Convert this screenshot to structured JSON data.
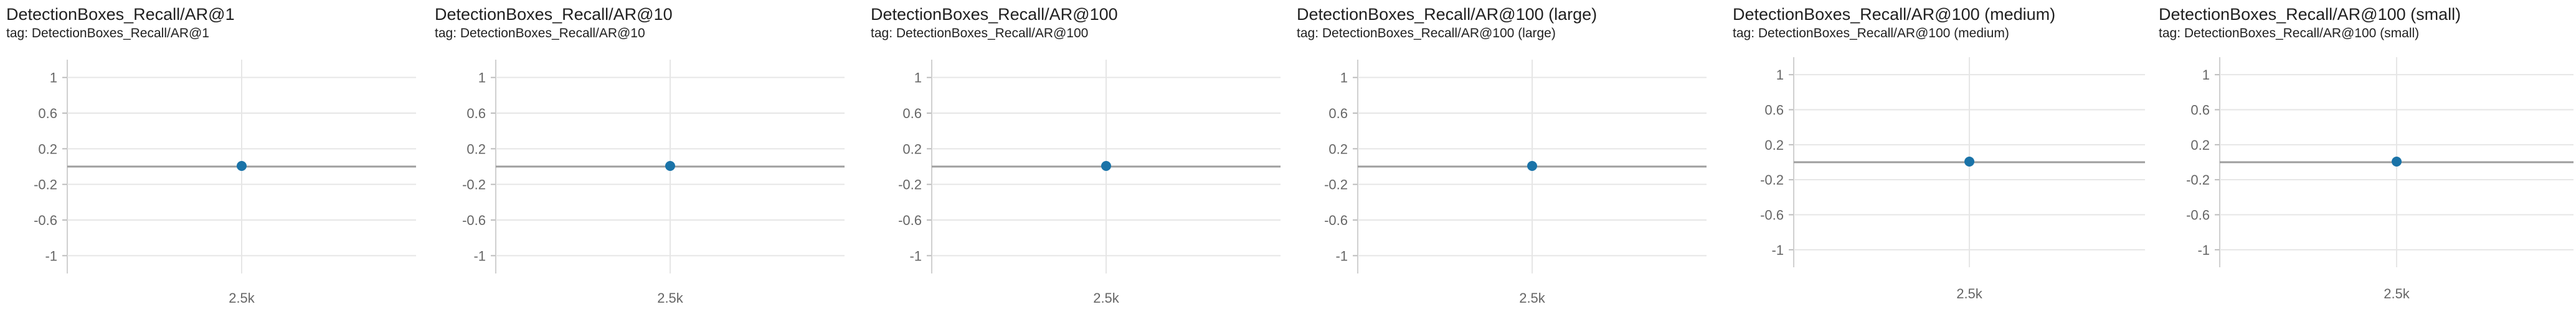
{
  "chart_data": [
    {
      "type": "scatter",
      "title": "DetectionBoxes_Recall/AR@1",
      "tag": "tag: DetectionBoxes_Recall/AR@1",
      "ylim": [
        -1.2,
        1.2
      ],
      "yticks": [
        "1",
        "0.6",
        "0.2",
        "-0.2",
        "-0.6",
        "-1"
      ],
      "ytick_values": [
        1,
        0.6,
        0.2,
        -0.2,
        -0.6,
        -1
      ],
      "xticks": [
        "2.5k"
      ],
      "xtick_values": [
        2500
      ],
      "xlim": [
        0,
        5000
      ],
      "grid": true,
      "series": [
        {
          "x": [
            2500
          ],
          "y": [
            0
          ],
          "color": "#1a73a8"
        }
      ]
    },
    {
      "type": "scatter",
      "title": "DetectionBoxes_Recall/AR@10",
      "tag": "tag: DetectionBoxes_Recall/AR@10",
      "ylim": [
        -1.2,
        1.2
      ],
      "yticks": [
        "1",
        "0.6",
        "0.2",
        "-0.2",
        "-0.6",
        "-1"
      ],
      "ytick_values": [
        1,
        0.6,
        0.2,
        -0.2,
        -0.6,
        -1
      ],
      "xticks": [
        "2.5k"
      ],
      "xtick_values": [
        2500
      ],
      "xlim": [
        0,
        5000
      ],
      "grid": true,
      "series": [
        {
          "x": [
            2500
          ],
          "y": [
            0
          ],
          "color": "#1a73a8"
        }
      ]
    },
    {
      "type": "scatter",
      "title": "DetectionBoxes_Recall/AR@100",
      "tag": "tag: DetectionBoxes_Recall/AR@100",
      "ylim": [
        -1.2,
        1.2
      ],
      "yticks": [
        "1",
        "0.6",
        "0.2",
        "-0.2",
        "-0.6",
        "-1"
      ],
      "ytick_values": [
        1,
        0.6,
        0.2,
        -0.2,
        -0.6,
        -1
      ],
      "xticks": [
        "2.5k"
      ],
      "xtick_values": [
        2500
      ],
      "xlim": [
        0,
        5000
      ],
      "grid": true,
      "series": [
        {
          "x": [
            2500
          ],
          "y": [
            0
          ],
          "color": "#1a73a8"
        }
      ]
    },
    {
      "type": "scatter",
      "title": "DetectionBoxes_Recall/AR@100 (large)",
      "tag": "tag: DetectionBoxes_Recall/AR@100 (large)",
      "ylim": [
        -1.2,
        1.2
      ],
      "yticks": [
        "1",
        "0.6",
        "0.2",
        "-0.2",
        "-0.6",
        "-1"
      ],
      "ytick_values": [
        1,
        0.6,
        0.2,
        -0.2,
        -0.6,
        -1
      ],
      "xticks": [
        "2.5k"
      ],
      "xtick_values": [
        2500
      ],
      "xlim": [
        0,
        5000
      ],
      "grid": true,
      "series": [
        {
          "x": [
            2500
          ],
          "y": [
            0
          ],
          "color": "#1a73a8"
        }
      ]
    },
    {
      "type": "scatter",
      "title": "DetectionBoxes_Recall/AR@100 (medium)",
      "tag": "tag: DetectionBoxes_Recall/AR@100 (medium)",
      "ylim": [
        -1.2,
        1.2
      ],
      "yticks": [
        "1",
        "0.6",
        "0.2",
        "-0.2",
        "-0.6",
        "-1"
      ],
      "ytick_values": [
        1,
        0.6,
        0.2,
        -0.2,
        -0.6,
        -1
      ],
      "xticks": [
        "2.5k"
      ],
      "xtick_values": [
        2500
      ],
      "xlim": [
        0,
        5000
      ],
      "grid": true,
      "series": [
        {
          "x": [
            2500
          ],
          "y": [
            0
          ],
          "color": "#1a73a8"
        }
      ]
    },
    {
      "type": "scatter",
      "title": "DetectionBoxes_Recall/AR@100 (small)",
      "tag": "tag: DetectionBoxes_Recall/AR@100 (small)",
      "ylim": [
        -1.2,
        1.2
      ],
      "yticks": [
        "1",
        "0.6",
        "0.2",
        "-0.2",
        "-0.6",
        "-1"
      ],
      "ytick_values": [
        1,
        0.6,
        0.2,
        -0.2,
        -0.6,
        -1
      ],
      "xticks": [
        "2.5k"
      ],
      "xtick_values": [
        2500
      ],
      "xlim": [
        0,
        5000
      ],
      "grid": true,
      "series": [
        {
          "x": [
            2500
          ],
          "y": [
            0
          ],
          "color": "#1a73a8"
        }
      ]
    }
  ]
}
